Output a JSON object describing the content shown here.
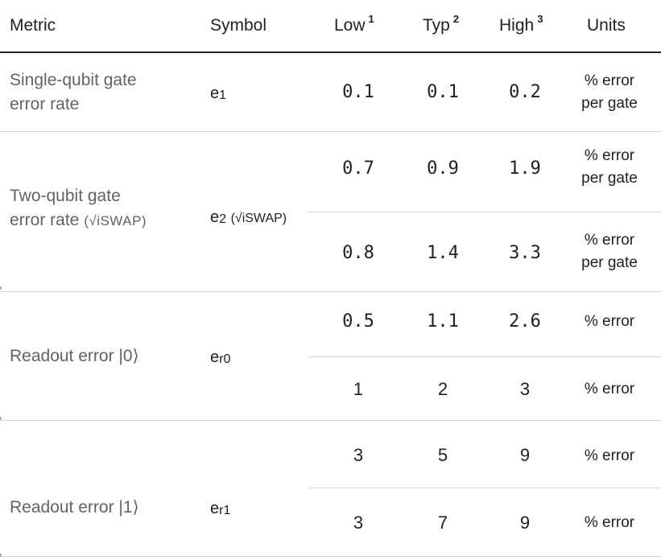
{
  "header": {
    "metric": "Metric",
    "symbol": "Symbol",
    "low": "Low",
    "low_note": "1",
    "typ": "Typ",
    "typ_note": "2",
    "high": "High",
    "high_note": "3",
    "units": "Units"
  },
  "rows": {
    "single": {
      "metric_line1": "Single-qubit gate",
      "metric_line2": "error rate",
      "symbol": "e",
      "symbol_sub": "1",
      "low": "0.1",
      "typ": "0.1",
      "high": "0.2",
      "unit_line1": "% error",
      "unit_line2": "per gate"
    },
    "two": {
      "metric_line1": "Two-qubit gate",
      "metric_line2": "error rate",
      "metric_suffix": "(√iSWAP)",
      "symbol": "e",
      "symbol_sub": "2",
      "symbol_suffix": "(√iSWAP)",
      "a": {
        "low": "0.7",
        "typ": "0.9",
        "high": "1.9",
        "unit_line1": "% error",
        "unit_line2": "per gate"
      },
      "b": {
        "low": "0.8",
        "typ": "1.4",
        "high": "3.3",
        "unit_line1": "% error",
        "unit_line2": "per gate"
      }
    },
    "readout0": {
      "metric": "Readout error |0⟩",
      "symbol": "e",
      "symbol_sub": "r0",
      "a": {
        "low": "0.5",
        "typ": "1.1",
        "high": "2.6",
        "unit": "% error"
      },
      "b": {
        "low": "1",
        "typ": "2",
        "high": "3",
        "unit": "% error"
      }
    },
    "readout1": {
      "metric": "Readout error |1⟩",
      "symbol": "e",
      "symbol_sub": "r1",
      "a": {
        "low": "3",
        "typ": "5",
        "high": "9",
        "unit": "% error"
      },
      "b": {
        "low": "3",
        "typ": "7",
        "high": "9",
        "unit": "% error"
      }
    }
  }
}
